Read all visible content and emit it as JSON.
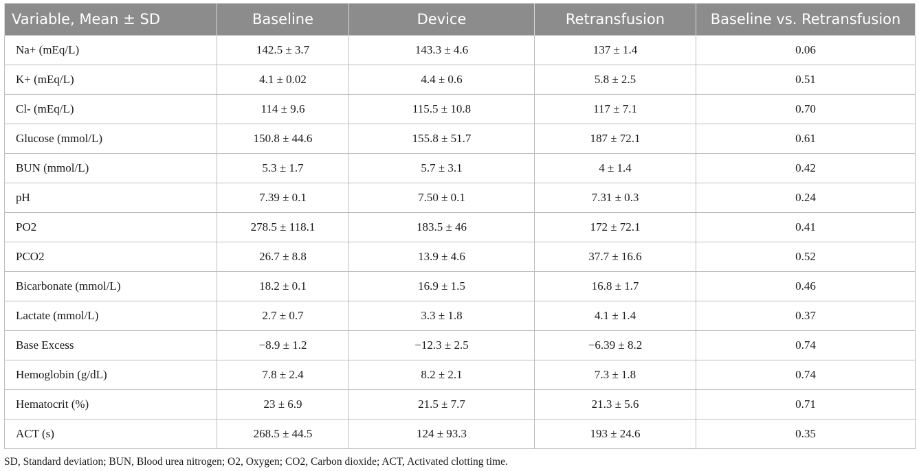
{
  "table": {
    "headers": [
      "Variable, Mean ± SD",
      "Baseline",
      "Device",
      "Retransfusion",
      "Baseline vs. Retransfusion"
    ],
    "rows": [
      [
        "Na+ (mEq/L)",
        "142.5 ± 3.7",
        "143.3 ± 4.6",
        "137 ± 1.4",
        "0.06"
      ],
      [
        "K+ (mEq/L)",
        "4.1 ± 0.02",
        "4.4 ± 0.6",
        "5.8 ± 2.5",
        "0.51"
      ],
      [
        "Cl- (mEq/L)",
        "114 ± 9.6",
        "115.5 ± 10.8",
        "117 ± 7.1",
        "0.70"
      ],
      [
        "Glucose (mmol/L)",
        "150.8 ± 44.6",
        "155.8 ± 51.7",
        "187 ± 72.1",
        "0.61"
      ],
      [
        "BUN (mmol/L)",
        "5.3 ± 1.7",
        "5.7 ± 3.1",
        "4 ± 1.4",
        "0.42"
      ],
      [
        "pH",
        "7.39 ± 0.1",
        "7.50 ± 0.1",
        "7.31 ± 0.3",
        "0.24"
      ],
      [
        "PO2",
        "278.5 ± 118.1",
        "183.5 ± 46",
        "172 ± 72.1",
        "0.41"
      ],
      [
        "PCO2",
        "26.7 ± 8.8",
        "13.9 ± 4.6",
        "37.7 ± 16.6",
        "0.52"
      ],
      [
        "Bicarbonate (mmol/L)",
        "18.2 ± 0.1",
        "16.9 ± 1.5",
        "16.8 ± 1.7",
        "0.46"
      ],
      [
        "Lactate (mmol/L)",
        "2.7 ± 0.7",
        "3.3 ± 1.8",
        "4.1 ± 1.4",
        "0.37"
      ],
      [
        "Base Excess",
        "−8.9 ± 1.2",
        "−12.3 ± 2.5",
        "−6.39 ± 8.2",
        "0.74"
      ],
      [
        "Hemoglobin (g/dL)",
        "7.8 ± 2.4",
        "8.2 ± 2.1",
        "7.3 ± 1.8",
        "0.74"
      ],
      [
        "Hematocrit (%)",
        "23 ± 6.9",
        "21.5 ± 7.7",
        "21.3 ± 5.6",
        "0.71"
      ],
      [
        "ACT (s)",
        "268.5 ± 44.5",
        "124 ± 93.3",
        "193 ± 24.6",
        "0.35"
      ]
    ]
  },
  "footnote": "SD, Standard deviation; BUN, Blood urea nitrogen; O2, Oxygen; CO2, Carbon dioxide; ACT, Activated clotting time.",
  "colors": {
    "header_background": "#8c8c8c",
    "header_text": "#ffffff",
    "grid_lines": "#bdbdbd"
  }
}
